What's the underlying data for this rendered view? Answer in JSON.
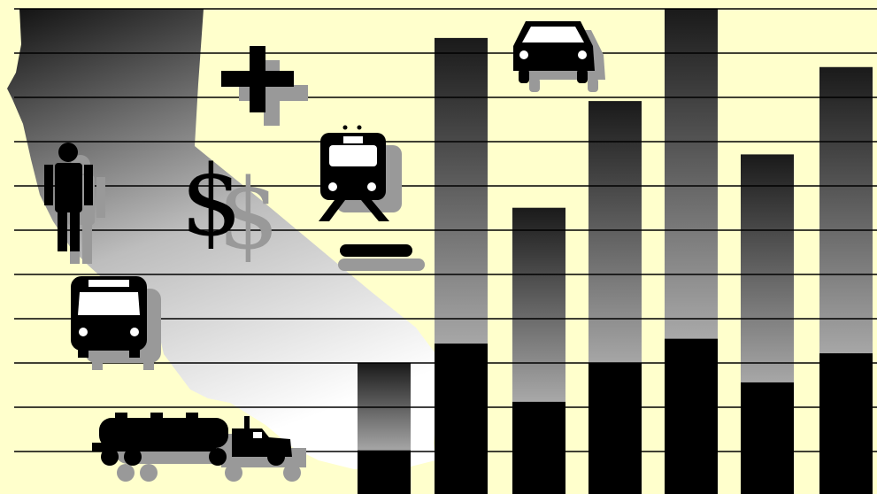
{
  "palette": {
    "background": "#ffffcc",
    "bar_top": "#1a1a1a",
    "bar_bottom": "#ebebeb",
    "solid": "#000000",
    "shadow": "#999999",
    "rule": "#000000"
  },
  "icons": [
    "california-map-icon",
    "person-icon",
    "plus-icon",
    "dollar-sign-icon",
    "train-icon",
    "bus-icon",
    "tanker-truck-icon",
    "car-icon"
  ],
  "bars": [
    {
      "gradient_level": 0.27,
      "solid_level": 0.09
    },
    {
      "gradient_level": 0.94,
      "solid_level": 0.31
    },
    {
      "gradient_level": 0.59,
      "solid_level": 0.19
    },
    {
      "gradient_level": 0.81,
      "solid_level": 0.27
    },
    {
      "gradient_level": 1.0,
      "solid_level": 0.32
    },
    {
      "gradient_level": 0.7,
      "solid_level": 0.23
    },
    {
      "gradient_level": 0.88,
      "solid_level": 0.29
    }
  ],
  "symbols": {
    "dollar": "$"
  }
}
